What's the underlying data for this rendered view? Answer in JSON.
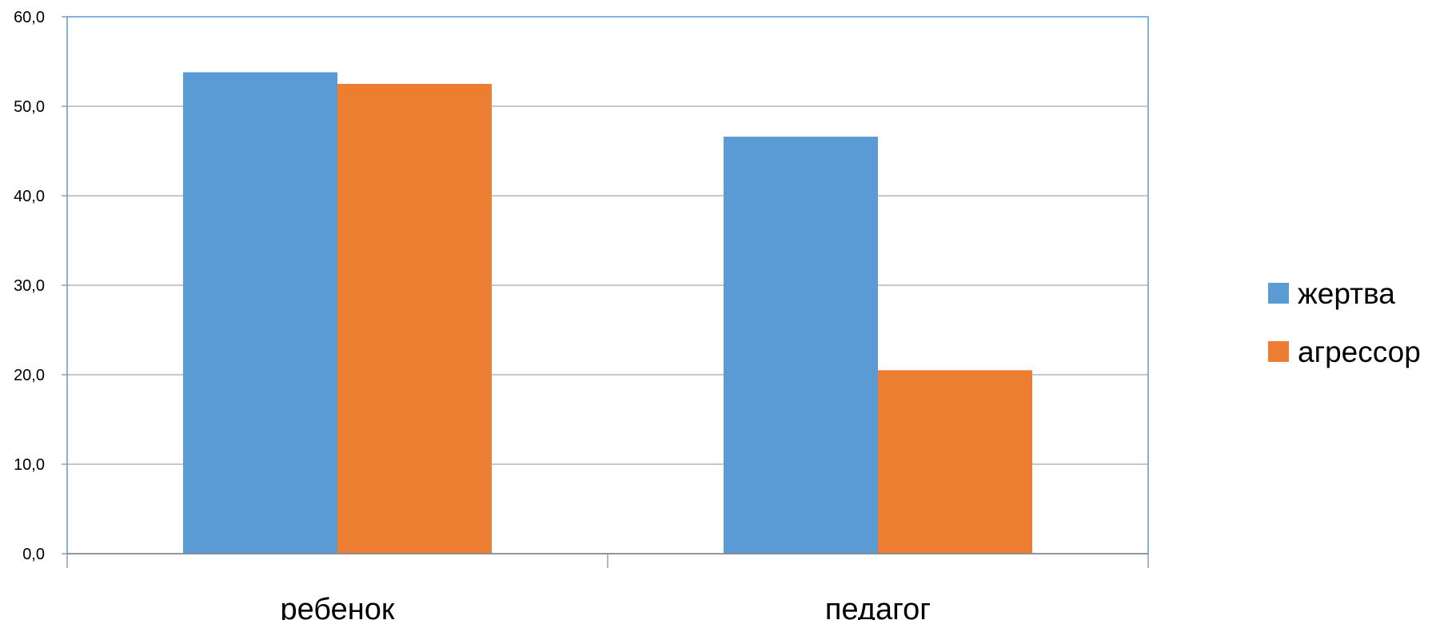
{
  "chart_data": {
    "type": "bar",
    "categories": [
      "ребенок",
      "педагог"
    ],
    "series": [
      {
        "name": "жертва",
        "values": [
          53.8,
          46.6
        ]
      },
      {
        "name": "агрессор",
        "values": [
          52.5,
          20.5
        ]
      }
    ],
    "title": "",
    "xlabel": "",
    "ylabel": "",
    "ylim": [
      0,
      60
    ],
    "y_ticks": [
      "0,0",
      "10,0",
      "20,0",
      "30,0",
      "40,0",
      "50,0",
      "60,0"
    ],
    "grid": true,
    "legend_position": "right",
    "colors": {
      "series": [
        "#5B9BD5",
        "#ED7D31"
      ],
      "plot_border": "#5B9BD5",
      "gridline": "#A6A6A6",
      "axis": "#868686"
    }
  }
}
